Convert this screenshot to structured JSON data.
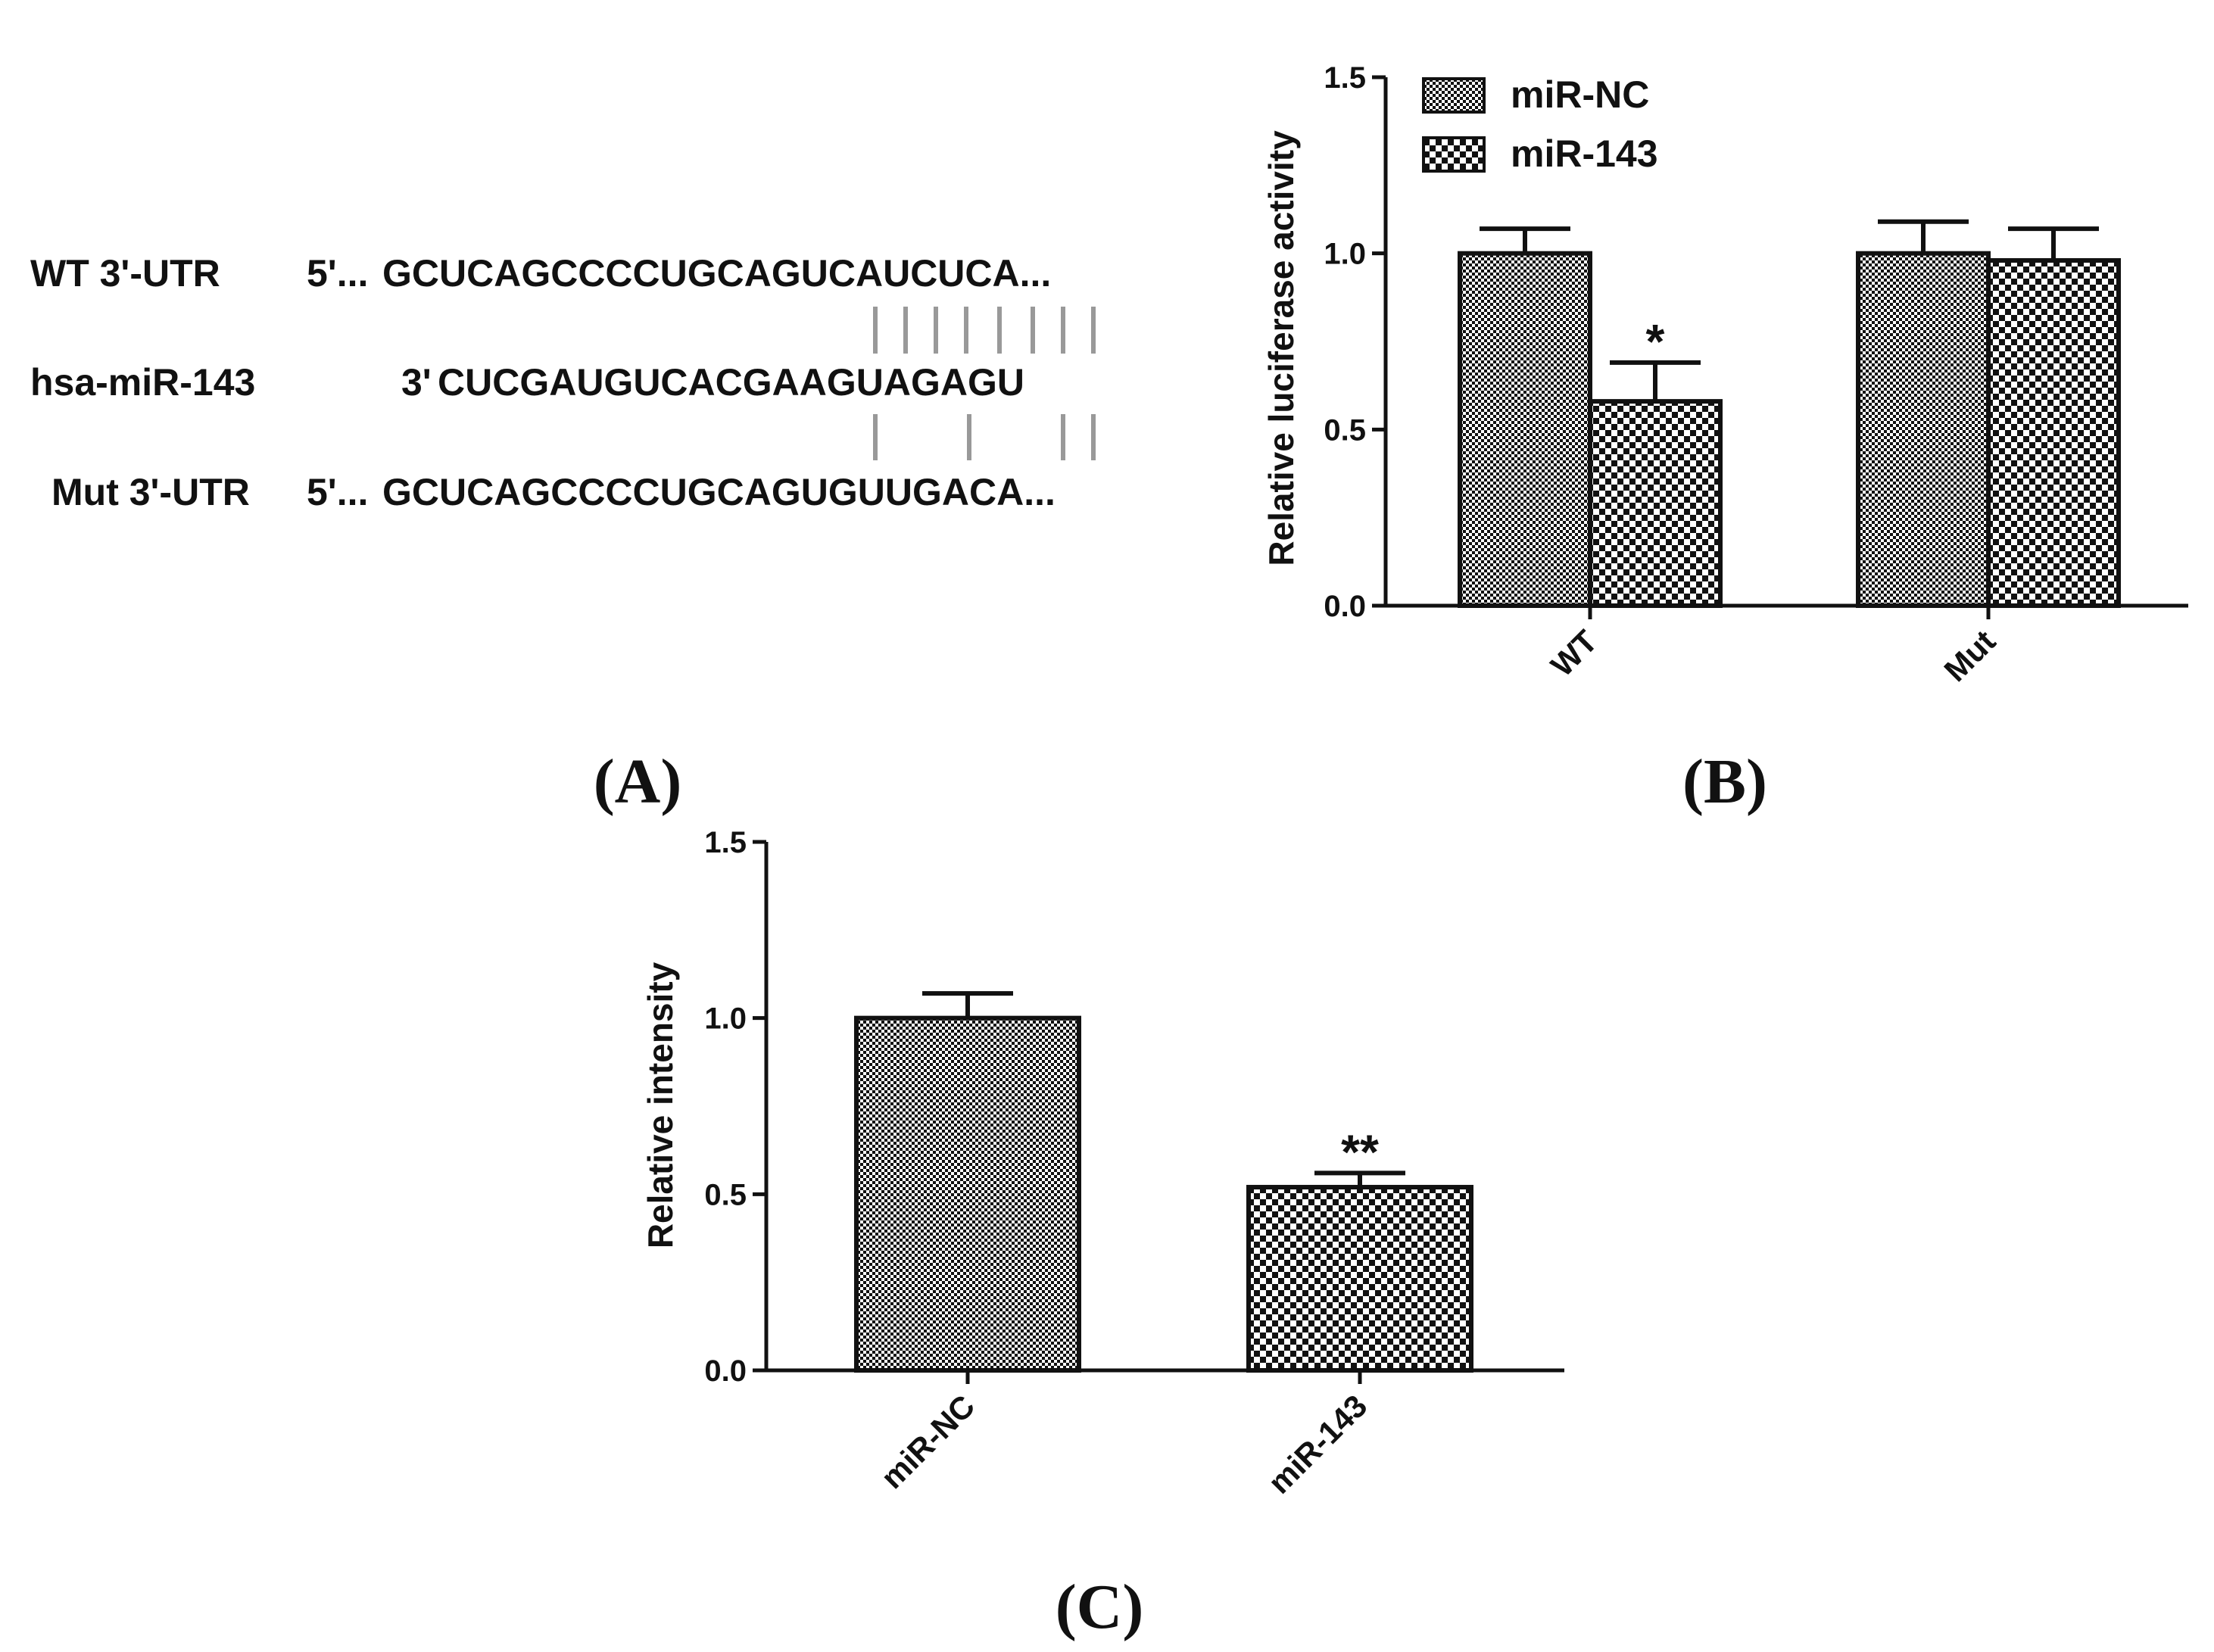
{
  "panel_labels": {
    "a": "(A)",
    "b": "(B)",
    "c": "(C)"
  },
  "sequence": {
    "rows": [
      {
        "label": "WT 3'-UTR",
        "prefix": "5'...",
        "seq": "GCUCAGCCCCUGCAGUCAUCUCA..."
      },
      {
        "label": "hsa-miR-143",
        "prefix": "3'",
        "seq": "CUCGAUGUCACGAAGUAGAGU"
      },
      {
        "label": "Mut 3'-UTR",
        "prefix": "5'...",
        "seq": "GCUCAGCCCCUGCAGUGUUGACA..."
      }
    ],
    "pairing_color": "#999999"
  },
  "chart_data": [
    {
      "type": "bar",
      "panel": "B",
      "categories": [
        "WT",
        "Mut"
      ],
      "series": [
        {
          "name": "miR-NC",
          "values": [
            1.0,
            1.0
          ],
          "errors": [
            0.07,
            0.09
          ],
          "pattern": "fine-checker"
        },
        {
          "name": "miR-143",
          "values": [
            0.58,
            0.98
          ],
          "errors": [
            0.11,
            0.09
          ],
          "pattern": "coarse-checker"
        }
      ],
      "annotations": [
        "*",
        ""
      ],
      "ylabel": "Relative luciferase activity",
      "xlabel": "",
      "ylim": [
        0,
        1.5
      ],
      "yticks": [
        "0.0",
        "0.5",
        "1.0",
        "1.5"
      ],
      "legend": "top-left",
      "grid": false
    },
    {
      "type": "bar",
      "panel": "C",
      "categories": [
        "miR-NC",
        "miR-143"
      ],
      "values": [
        1.0,
        0.52
      ],
      "errors": [
        0.07,
        0.04
      ],
      "patterns": [
        "fine-checker",
        "coarse-checker"
      ],
      "annotations": [
        "",
        "**"
      ],
      "ylabel": "Relative intensity",
      "xlabel": "",
      "ylim": [
        0,
        1.5
      ],
      "yticks": [
        "0.0",
        "0.5",
        "1.0",
        "1.5"
      ],
      "grid": false
    }
  ]
}
